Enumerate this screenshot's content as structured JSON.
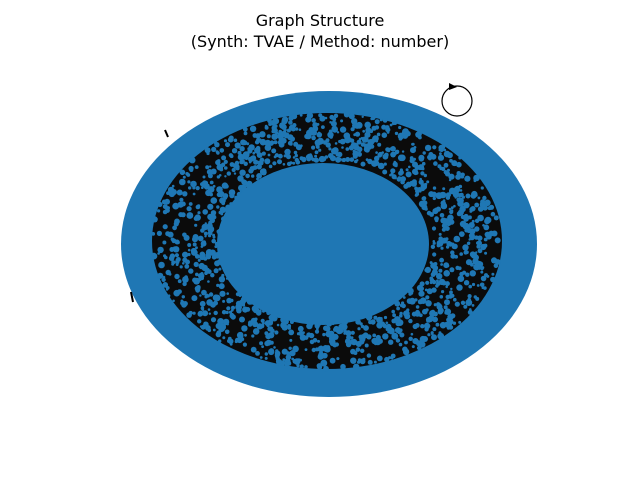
{
  "figure": {
    "title_line1": "Graph Structure",
    "title_line2": "(Synth: TVAE / Method: number)"
  },
  "colors": {
    "node": "#1f77b4",
    "edge": "#000000",
    "background": "#ffffff"
  },
  "graph": {
    "layout": "spring",
    "has_self_loop": true,
    "node_rendering": "dense-ring"
  }
}
